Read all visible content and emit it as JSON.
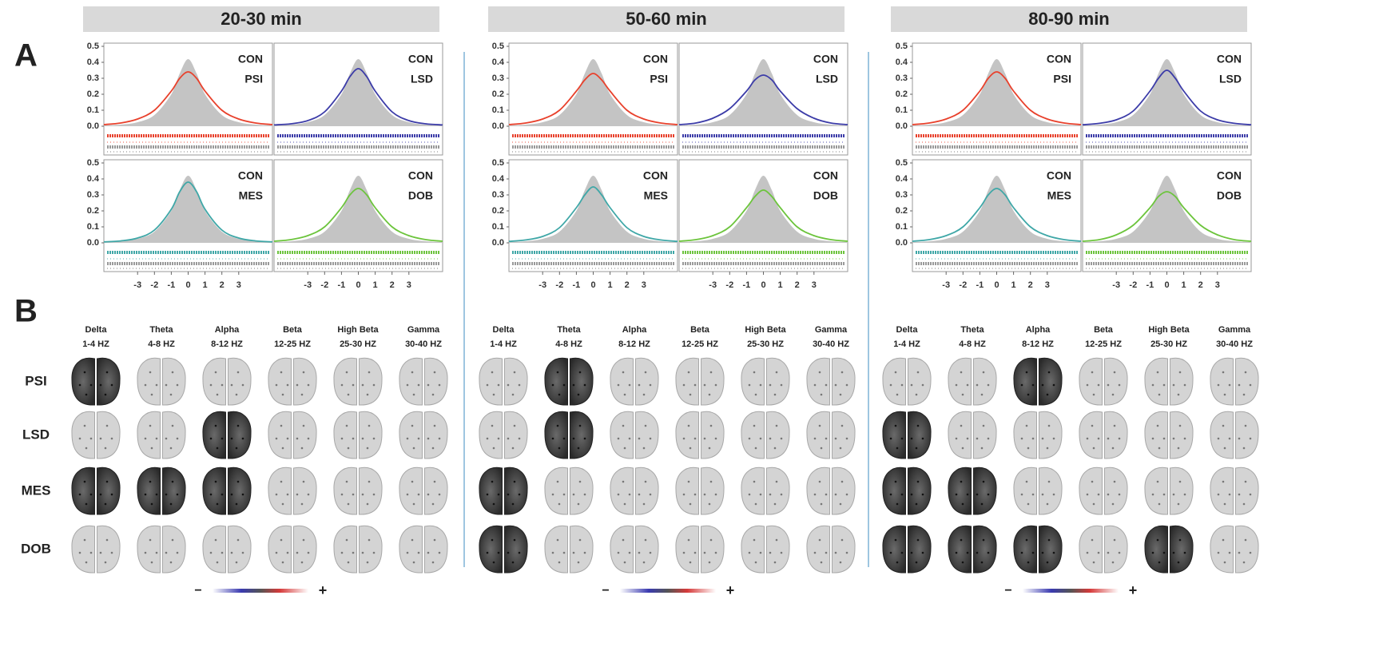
{
  "panel_labels": [
    "A",
    "B"
  ],
  "columns": [
    {
      "title": "20-30 min"
    },
    {
      "title": "50-60 min"
    },
    {
      "title": "80-90 min"
    }
  ],
  "chart_data": [
    {
      "type": "area",
      "x": [
        -5,
        -4,
        -3,
        -2,
        -1,
        -0.5,
        0,
        0.5,
        1,
        2,
        3,
        4,
        5
      ],
      "xlim": [
        -5,
        5
      ],
      "ylim": [
        -0.18,
        0.52
      ],
      "yticks": [
        {
          "value": 0,
          "label": "0.0"
        },
        0.1,
        0.2,
        0.3,
        0.4,
        0.5
      ],
      "series": [
        {
          "name": "CON",
          "color": "#c4c4c4",
          "values": [
            0.005,
            0.01,
            0.025,
            0.07,
            0.2,
            0.33,
            0.42,
            0.33,
            0.2,
            0.07,
            0.025,
            0.01,
            0.005
          ]
        },
        {
          "name": "PSI",
          "color": "#e8412c",
          "values": [
            0.01,
            0.02,
            0.045,
            0.1,
            0.22,
            0.3,
            0.34,
            0.3,
            0.22,
            0.1,
            0.045,
            0.02,
            0.01
          ]
        }
      ]
    },
    {
      "type": "area",
      "x": [
        -5,
        -4,
        -3,
        -2,
        -1,
        -0.5,
        0,
        0.5,
        1,
        2,
        3,
        4,
        5
      ],
      "xlim": [
        -5,
        5
      ],
      "ylim": [
        -0.18,
        0.52
      ],
      "series": [
        {
          "name": "CON",
          "color": "#c4c4c4",
          "values": [
            0.005,
            0.01,
            0.025,
            0.07,
            0.2,
            0.33,
            0.42,
            0.33,
            0.2,
            0.07,
            0.025,
            0.01,
            0.005
          ]
        },
        {
          "name": "LSD",
          "color": "#3c3ca8",
          "values": [
            0.008,
            0.015,
            0.035,
            0.09,
            0.22,
            0.31,
            0.36,
            0.31,
            0.22,
            0.09,
            0.035,
            0.015,
            0.008
          ]
        }
      ]
    },
    {
      "type": "area",
      "x": [
        -5,
        -4,
        -3,
        -2,
        -1,
        -0.5,
        0,
        0.5,
        1,
        2,
        3,
        4,
        5
      ],
      "xlim": [
        -5,
        5
      ],
      "ylim": [
        -0.18,
        0.52
      ],
      "yticks": [
        {
          "value": 0,
          "label": "0.0"
        },
        0.1,
        0.2,
        0.3,
        0.4,
        0.5
      ],
      "xticks": [
        -3,
        -2,
        -1,
        0,
        1,
        2,
        3
      ],
      "series": [
        {
          "name": "CON",
          "color": "#c4c4c4",
          "values": [
            0.005,
            0.01,
            0.025,
            0.07,
            0.2,
            0.33,
            0.42,
            0.33,
            0.2,
            0.07,
            0.025,
            0.01,
            0.005
          ]
        },
        {
          "name": "MES",
          "color": "#3fa7a7",
          "values": [
            0.006,
            0.012,
            0.03,
            0.08,
            0.21,
            0.32,
            0.38,
            0.32,
            0.21,
            0.08,
            0.03,
            0.012,
            0.006
          ]
        }
      ]
    },
    {
      "type": "area",
      "x": [
        -5,
        -4,
        -3,
        -2,
        -1,
        -0.5,
        0,
        0.5,
        1,
        2,
        3,
        4,
        5
      ],
      "xlim": [
        -5,
        5
      ],
      "ylim": [
        -0.18,
        0.52
      ],
      "xticks": [
        -3,
        -2,
        -1,
        0,
        1,
        2,
        3
      ],
      "series": [
        {
          "name": "CON",
          "color": "#c4c4c4",
          "values": [
            0.005,
            0.01,
            0.025,
            0.07,
            0.2,
            0.33,
            0.42,
            0.33,
            0.2,
            0.07,
            0.025,
            0.01,
            0.005
          ]
        },
        {
          "name": "DOB",
          "color": "#6cc43c",
          "values": [
            0.01,
            0.02,
            0.045,
            0.1,
            0.22,
            0.3,
            0.34,
            0.3,
            0.22,
            0.1,
            0.045,
            0.02,
            0.01
          ]
        }
      ]
    },
    {
      "type": "area",
      "x": [
        -5,
        -4,
        -3,
        -2,
        -1,
        -0.5,
        0,
        0.5,
        1,
        2,
        3,
        4,
        5
      ],
      "xlim": [
        -5,
        5
      ],
      "ylim": [
        -0.18,
        0.52
      ],
      "yticks": [
        {
          "value": 0,
          "label": "0.0"
        },
        0.1,
        0.2,
        0.3,
        0.4,
        0.5
      ],
      "series": [
        {
          "name": "CON",
          "color": "#c4c4c4",
          "values": [
            0.005,
            0.01,
            0.025,
            0.07,
            0.2,
            0.33,
            0.42,
            0.33,
            0.2,
            0.07,
            0.025,
            0.01,
            0.005
          ]
        },
        {
          "name": "PSI",
          "color": "#e8412c",
          "values": [
            0.01,
            0.02,
            0.045,
            0.1,
            0.22,
            0.29,
            0.33,
            0.29,
            0.22,
            0.1,
            0.045,
            0.02,
            0.01
          ]
        }
      ]
    },
    {
      "type": "area",
      "x": [
        -5,
        -4,
        -3,
        -2,
        -1,
        -0.5,
        0,
        0.5,
        1,
        2,
        3,
        4,
        5
      ],
      "xlim": [
        -5,
        5
      ],
      "ylim": [
        -0.18,
        0.52
      ],
      "series": [
        {
          "name": "CON",
          "color": "#c4c4c4",
          "values": [
            0.005,
            0.01,
            0.025,
            0.07,
            0.2,
            0.33,
            0.42,
            0.33,
            0.2,
            0.07,
            0.025,
            0.01,
            0.005
          ]
        },
        {
          "name": "LSD",
          "color": "#3c3ca8",
          "values": [
            0.01,
            0.02,
            0.05,
            0.11,
            0.22,
            0.29,
            0.32,
            0.29,
            0.22,
            0.11,
            0.05,
            0.02,
            0.01
          ]
        }
      ]
    },
    {
      "type": "area",
      "x": [
        -5,
        -4,
        -3,
        -2,
        -1,
        -0.5,
        0,
        0.5,
        1,
        2,
        3,
        4,
        5
      ],
      "xlim": [
        -5,
        5
      ],
      "ylim": [
        -0.18,
        0.52
      ],
      "yticks": [
        {
          "value": 0,
          "label": "0.0"
        },
        0.1,
        0.2,
        0.3,
        0.4,
        0.5
      ],
      "xticks": [
        -3,
        -2,
        -1,
        0,
        1,
        2,
        3
      ],
      "series": [
        {
          "name": "CON",
          "color": "#c4c4c4",
          "values": [
            0.005,
            0.01,
            0.025,
            0.07,
            0.2,
            0.33,
            0.42,
            0.33,
            0.2,
            0.07,
            0.025,
            0.01,
            0.005
          ]
        },
        {
          "name": "MES",
          "color": "#3fa7a7",
          "values": [
            0.009,
            0.018,
            0.04,
            0.095,
            0.22,
            0.3,
            0.35,
            0.3,
            0.22,
            0.095,
            0.04,
            0.018,
            0.009
          ]
        }
      ]
    },
    {
      "type": "area",
      "x": [
        -5,
        -4,
        -3,
        -2,
        -1,
        -0.5,
        0,
        0.5,
        1,
        2,
        3,
        4,
        5
      ],
      "xlim": [
        -5,
        5
      ],
      "ylim": [
        -0.18,
        0.52
      ],
      "xticks": [
        -3,
        -2,
        -1,
        0,
        1,
        2,
        3
      ],
      "series": [
        {
          "name": "CON",
          "color": "#c4c4c4",
          "values": [
            0.005,
            0.01,
            0.025,
            0.07,
            0.2,
            0.33,
            0.42,
            0.33,
            0.2,
            0.07,
            0.025,
            0.01,
            0.005
          ]
        },
        {
          "name": "DOB",
          "color": "#6cc43c",
          "values": [
            0.01,
            0.02,
            0.045,
            0.1,
            0.22,
            0.29,
            0.33,
            0.29,
            0.22,
            0.1,
            0.045,
            0.02,
            0.01
          ]
        }
      ]
    },
    {
      "type": "area",
      "x": [
        -5,
        -4,
        -3,
        -2,
        -1,
        -0.5,
        0,
        0.5,
        1,
        2,
        3,
        4,
        5
      ],
      "xlim": [
        -5,
        5
      ],
      "ylim": [
        -0.18,
        0.52
      ],
      "yticks": [
        {
          "value": 0,
          "label": "0.0"
        },
        0.1,
        0.2,
        0.3,
        0.4,
        0.5
      ],
      "series": [
        {
          "name": "CON",
          "color": "#c4c4c4",
          "values": [
            0.005,
            0.01,
            0.025,
            0.07,
            0.2,
            0.33,
            0.42,
            0.33,
            0.2,
            0.07,
            0.025,
            0.01,
            0.005
          ]
        },
        {
          "name": "PSI",
          "color": "#e8412c",
          "values": [
            0.01,
            0.02,
            0.045,
            0.1,
            0.22,
            0.3,
            0.34,
            0.3,
            0.22,
            0.1,
            0.045,
            0.02,
            0.01
          ]
        }
      ]
    },
    {
      "type": "area",
      "x": [
        -5,
        -4,
        -3,
        -2,
        -1,
        -0.5,
        0,
        0.5,
        1,
        2,
        3,
        4,
        5
      ],
      "xlim": [
        -5,
        5
      ],
      "ylim": [
        -0.18,
        0.52
      ],
      "series": [
        {
          "name": "CON",
          "color": "#c4c4c4",
          "values": [
            0.005,
            0.01,
            0.025,
            0.07,
            0.2,
            0.33,
            0.42,
            0.33,
            0.2,
            0.07,
            0.025,
            0.01,
            0.005
          ]
        },
        {
          "name": "LSD",
          "color": "#3c3ca8",
          "values": [
            0.009,
            0.018,
            0.04,
            0.095,
            0.22,
            0.3,
            0.35,
            0.3,
            0.22,
            0.095,
            0.04,
            0.018,
            0.009
          ]
        }
      ]
    },
    {
      "type": "area",
      "x": [
        -5,
        -4,
        -3,
        -2,
        -1,
        -0.5,
        0,
        0.5,
        1,
        2,
        3,
        4,
        5
      ],
      "xlim": [
        -5,
        5
      ],
      "ylim": [
        -0.18,
        0.52
      ],
      "yticks": [
        {
          "value": 0,
          "label": "0.0"
        },
        0.1,
        0.2,
        0.3,
        0.4,
        0.5
      ],
      "xticks": [
        -3,
        -2,
        -1,
        0,
        1,
        2,
        3
      ],
      "series": [
        {
          "name": "CON",
          "color": "#c4c4c4",
          "values": [
            0.005,
            0.01,
            0.025,
            0.07,
            0.2,
            0.33,
            0.42,
            0.33,
            0.2,
            0.07,
            0.025,
            0.01,
            0.005
          ]
        },
        {
          "name": "MES",
          "color": "#3fa7a7",
          "values": [
            0.01,
            0.02,
            0.045,
            0.1,
            0.22,
            0.3,
            0.34,
            0.3,
            0.22,
            0.1,
            0.045,
            0.02,
            0.01
          ]
        }
      ]
    },
    {
      "type": "area",
      "x": [
        -5,
        -4,
        -3,
        -2,
        -1,
        -0.5,
        0,
        0.5,
        1,
        2,
        3,
        4,
        5
      ],
      "xlim": [
        -5,
        5
      ],
      "ylim": [
        -0.18,
        0.52
      ],
      "xticks": [
        -3,
        -2,
        -1,
        0,
        1,
        2,
        3
      ],
      "series": [
        {
          "name": "CON",
          "color": "#c4c4c4",
          "values": [
            0.005,
            0.01,
            0.025,
            0.07,
            0.2,
            0.33,
            0.42,
            0.33,
            0.2,
            0.07,
            0.025,
            0.01,
            0.005
          ]
        },
        {
          "name": "DOB",
          "color": "#6cc43c",
          "values": [
            0.01,
            0.02,
            0.05,
            0.11,
            0.22,
            0.29,
            0.32,
            0.29,
            0.22,
            0.11,
            0.05,
            0.02,
            0.01
          ]
        }
      ]
    }
  ],
  "brain_maps": {
    "bands": [
      {
        "name": "Delta",
        "range": "1-4 HZ"
      },
      {
        "name": "Theta",
        "range": "4-8 HZ"
      },
      {
        "name": "Alpha",
        "range": "8-12 HZ"
      },
      {
        "name": "Beta",
        "range": "12-25 HZ"
      },
      {
        "name": "High Beta",
        "range": "25-30 HZ"
      },
      {
        "name": "Gamma",
        "range": "30-40 HZ"
      }
    ],
    "rows": [
      "PSI",
      "LSD",
      "MES",
      "DOB"
    ],
    "significant": [
      [
        [
          true,
          false,
          false,
          false,
          false,
          false
        ],
        [
          false,
          false,
          true,
          false,
          false,
          false
        ],
        [
          true,
          true,
          true,
          false,
          false,
          false
        ],
        [
          false,
          false,
          false,
          false,
          false,
          false
        ]
      ],
      [
        [
          false,
          true,
          false,
          false,
          false,
          false
        ],
        [
          false,
          true,
          false,
          false,
          false,
          false
        ],
        [
          true,
          false,
          false,
          false,
          false,
          false
        ],
        [
          true,
          false,
          false,
          false,
          false,
          false
        ]
      ],
      [
        [
          false,
          false,
          true,
          false,
          false,
          false
        ],
        [
          true,
          false,
          false,
          false,
          false,
          false
        ],
        [
          true,
          true,
          false,
          false,
          false,
          false
        ],
        [
          true,
          true,
          true,
          false,
          true,
          false
        ]
      ]
    ]
  },
  "colorbar": {
    "minus": "−",
    "plus": "+"
  }
}
